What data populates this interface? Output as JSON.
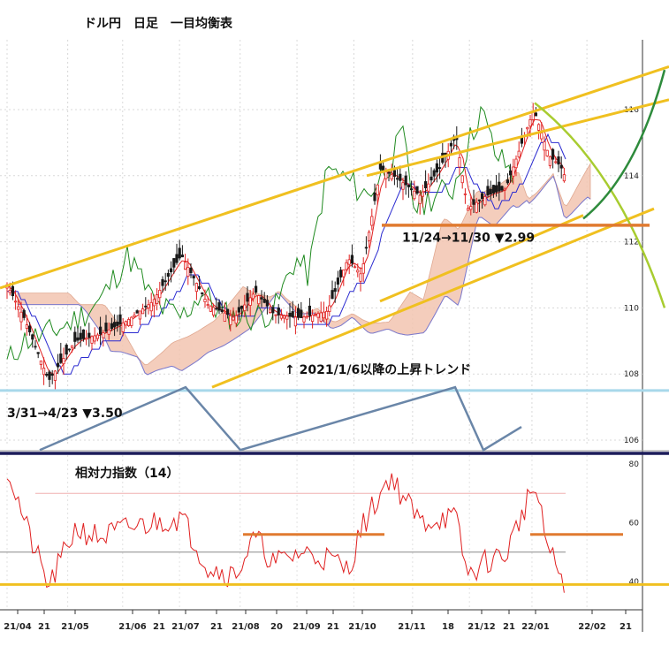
{
  "chart_data": [
    {
      "type": "candlestick",
      "title": "ドル円　日足　一目均衡表",
      "y_axis_side": "right",
      "ylim": [
        104.8,
        117.2
      ],
      "yticks": [
        {
          "value": 106,
          "label": "106"
        },
        {
          "value": 108,
          "label": "108"
        },
        {
          "value": 110,
          "label": "110"
        },
        {
          "value": 112,
          "label": "112"
        },
        {
          "value": 114,
          "label": "114"
        },
        {
          "value": 116,
          "label": "116"
        }
      ],
      "x_tick_labels": [
        "21/04",
        "21",
        "21/05",
        "21/06",
        "21",
        "21/07",
        "21",
        "21/08",
        "20",
        "21/09",
        "21",
        "21/10",
        "21/11",
        "18",
        "21/12",
        "21",
        "22/01",
        "22/02",
        "21"
      ],
      "grid": true,
      "indicators": [
        "転換線",
        "基準線",
        "遅行スパン",
        "先行スパン1",
        "先行スパン2",
        "雲"
      ],
      "annotations": [
        {
          "text": "11/24→11/30 ▼2.99"
        },
        {
          "text": "3/31→4/23 ▼3.50"
        },
        {
          "text": "↑ 2021/1/6以降の上昇トレンド"
        }
      ],
      "horizontal_levels": [
        {
          "value": 112.5,
          "color": "#e07a30"
        },
        {
          "value": 107.5,
          "color": "#a8d8ea"
        },
        {
          "value": 105.6,
          "color": "#1c1c5a"
        }
      ],
      "price_path": [
        {
          "date": "2021-04-01",
          "close": 110.7
        },
        {
          "date": "2021-04-10",
          "close": 109.7
        },
        {
          "date": "2021-04-23",
          "close": 107.8
        },
        {
          "date": "2021-05-07",
          "close": 109.0
        },
        {
          "date": "2021-05-20",
          "close": 109.2
        },
        {
          "date": "2021-06-03",
          "close": 109.6
        },
        {
          "date": "2021-06-17",
          "close": 110.2
        },
        {
          "date": "2021-07-02",
          "close": 111.6
        },
        {
          "date": "2021-07-16",
          "close": 110.1
        },
        {
          "date": "2021-07-30",
          "close": 109.7
        },
        {
          "date": "2021-08-10",
          "close": 110.5
        },
        {
          "date": "2021-08-20",
          "close": 109.8
        },
        {
          "date": "2021-09-03",
          "close": 109.7
        },
        {
          "date": "2021-09-17",
          "close": 109.9
        },
        {
          "date": "2021-09-28",
          "close": 111.5
        },
        {
          "date": "2021-10-05",
          "close": 111.0
        },
        {
          "date": "2021-10-15",
          "close": 114.2
        },
        {
          "date": "2021-10-22",
          "close": 114.0
        },
        {
          "date": "2021-11-05",
          "close": 113.4
        },
        {
          "date": "2021-11-15",
          "close": 114.2
        },
        {
          "date": "2021-11-24",
          "close": 115.2
        },
        {
          "date": "2021-11-30",
          "close": 113.0
        },
        {
          "date": "2021-12-10",
          "close": 113.4
        },
        {
          "date": "2021-12-20",
          "close": 113.6
        },
        {
          "date": "2022-01-04",
          "close": 116.0
        },
        {
          "date": "2022-01-12",
          "close": 114.6
        },
        {
          "date": "2022-01-18",
          "close": 114.3
        },
        {
          "date": "2022-01-21",
          "close": 113.9
        }
      ]
    },
    {
      "type": "line",
      "title": "相対力指数（14）",
      "y_axis_side": "right",
      "ylim": [
        35,
        85
      ],
      "yticks": [
        {
          "value": 40,
          "label": "40"
        },
        {
          "value": 60,
          "label": "60"
        },
        {
          "value": 80,
          "label": "80"
        }
      ],
      "reference_lines": [
        70,
        50,
        39
      ],
      "series": [
        {
          "values": [
            {
              "date": "2021-04-01",
              "rsi": 79
            },
            {
              "date": "2021-04-12",
              "rsi": 57
            },
            {
              "date": "2021-04-23",
              "rsi": 38
            },
            {
              "date": "2021-05-07",
              "rsi": 58
            },
            {
              "date": "2021-05-20",
              "rsi": 55
            },
            {
              "date": "2021-06-03",
              "rsi": 58
            },
            {
              "date": "2021-06-17",
              "rsi": 60
            },
            {
              "date": "2021-07-02",
              "rsi": 62
            },
            {
              "date": "2021-07-16",
              "rsi": 45
            },
            {
              "date": "2021-07-30",
              "rsi": 42
            },
            {
              "date": "2021-08-10",
              "rsi": 55
            },
            {
              "date": "2021-08-20",
              "rsi": 46
            },
            {
              "date": "2021-09-03",
              "rsi": 50
            },
            {
              "date": "2021-09-17",
              "rsi": 48
            },
            {
              "date": "2021-09-28",
              "rsi": 44
            },
            {
              "date": "2021-10-05",
              "rsi": 58
            },
            {
              "date": "2021-10-20",
              "rsi": 76
            },
            {
              "date": "2021-11-05",
              "rsi": 60
            },
            {
              "date": "2021-11-18",
              "rsi": 62
            },
            {
              "date": "2021-11-24",
              "rsi": 61
            },
            {
              "date": "2021-11-30",
              "rsi": 42
            },
            {
              "date": "2021-12-10",
              "rsi": 47
            },
            {
              "date": "2021-12-20",
              "rsi": 49
            },
            {
              "date": "2022-01-04",
              "rsi": 73
            },
            {
              "date": "2022-01-12",
              "rsi": 50
            },
            {
              "date": "2022-01-21",
              "rsi": 39
            }
          ]
        }
      ],
      "horizontal_levels": [
        {
          "value": 56,
          "color": "#e07a30"
        },
        {
          "value": 39,
          "color": "#f0c020"
        }
      ]
    }
  ]
}
